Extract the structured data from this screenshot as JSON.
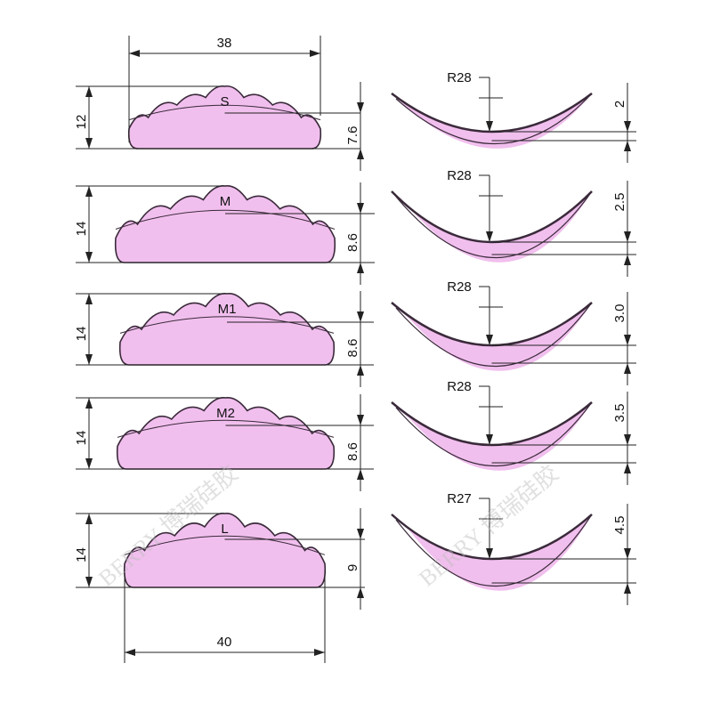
{
  "colors": {
    "fill": "#f1bfee",
    "stroke": "#3a2a3a",
    "line": "#222222"
  },
  "top_width_label": "38",
  "bottom_width_label": "40",
  "watermark": "BERRY 博瑞硅胶",
  "rows": [
    {
      "size": "S",
      "height": "12",
      "mid": "7.6",
      "radius": "R28",
      "depth": "2"
    },
    {
      "size": "M",
      "height": "14",
      "mid": "8.6",
      "radius": "R28",
      "depth": "2.5"
    },
    {
      "size": "M1",
      "height": "14",
      "mid": "8.6",
      "radius": "R28",
      "depth": "3.0"
    },
    {
      "size": "M2",
      "height": "14",
      "mid": "8.6",
      "radius": "R28",
      "depth": "3.5"
    },
    {
      "size": "L",
      "height": "14",
      "mid": "9",
      "radius": "R27",
      "depth": "4.5"
    }
  ]
}
